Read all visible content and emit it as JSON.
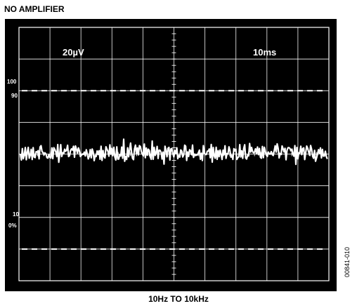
{
  "title": "NO AMPLIFIER",
  "caption": "10Hz TO 10kHz",
  "figure_id": "00841-010",
  "colors": {
    "screen": "#000000",
    "trace": "#ffffff",
    "grid": "#ffffff"
  },
  "chart_data": {
    "type": "line",
    "title": "NO AMPLIFIER",
    "xlabel": "10Hz TO 10kHz",
    "ylabel": "",
    "vertical_scale": "20µV",
    "horizontal_scale": "10ms",
    "divisions": {
      "x": 10,
      "y": 8
    },
    "xlim": [
      0,
      100
    ],
    "ylim": [
      -80,
      80
    ],
    "reference_labels": [
      "100",
      "90",
      "10",
      "0%"
    ],
    "trace": "noise",
    "noise_peak_to_peak_uV": 6,
    "grid": true,
    "legend": "none"
  }
}
